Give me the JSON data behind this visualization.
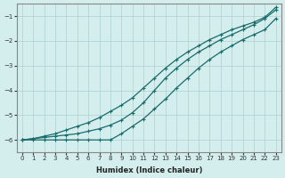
{
  "xlabel": "Humidex (Indice chaleur)",
  "xlim": [
    -0.5,
    23.5
  ],
  "ylim": [
    -6.5,
    -0.5
  ],
  "yticks": [
    -6,
    -5,
    -4,
    -3,
    -2,
    -1
  ],
  "xticks": [
    0,
    1,
    2,
    3,
    4,
    5,
    6,
    7,
    8,
    9,
    10,
    11,
    12,
    13,
    14,
    15,
    16,
    17,
    18,
    19,
    20,
    21,
    22,
    23
  ],
  "bg_color": "#d4eded",
  "grid_color": "#aed0d0",
  "line_color": "#1a6b6b",
  "series": {
    "upper": {
      "x": [
        0,
        1,
        2,
        3,
        4,
        5,
        6,
        7,
        8,
        9,
        10,
        11,
        12,
        13,
        14,
        15,
        16,
        17,
        18,
        19,
        20,
        21,
        22,
        23
      ],
      "y": [
        -6.0,
        -5.95,
        -5.85,
        -5.75,
        -5.6,
        -5.45,
        -5.3,
        -5.1,
        -4.85,
        -4.6,
        -4.3,
        -3.9,
        -3.5,
        -3.1,
        -2.75,
        -2.45,
        -2.2,
        -1.95,
        -1.75,
        -1.55,
        -1.4,
        -1.25,
        -1.05,
        -0.65
      ],
      "marker": true
    },
    "middle": {
      "x": [
        0,
        1,
        2,
        3,
        4,
        5,
        6,
        7,
        8,
        9,
        10,
        11,
        12,
        13,
        14,
        15,
        16,
        17,
        18,
        19,
        20,
        21,
        22,
        23
      ],
      "y": [
        -6.0,
        -5.95,
        -5.9,
        -5.85,
        -5.8,
        -5.75,
        -5.65,
        -5.55,
        -5.4,
        -5.2,
        -4.9,
        -4.5,
        -4.0,
        -3.5,
        -3.1,
        -2.75,
        -2.45,
        -2.2,
        -1.95,
        -1.75,
        -1.55,
        -1.35,
        -1.1,
        -0.75
      ],
      "marker": true
    },
    "lower": {
      "x": [
        0,
        1,
        2,
        3,
        4,
        5,
        6,
        7,
        8,
        9,
        10,
        11,
        12,
        13,
        14,
        15,
        16,
        17,
        18,
        19,
        20,
        21,
        22,
        23
      ],
      "y": [
        -6.0,
        -6.0,
        -6.0,
        -6.0,
        -6.0,
        -6.0,
        -6.0,
        -6.0,
        -6.0,
        -5.75,
        -5.45,
        -5.15,
        -4.75,
        -4.35,
        -3.9,
        -3.5,
        -3.1,
        -2.75,
        -2.45,
        -2.2,
        -1.95,
        -1.75,
        -1.55,
        -1.1
      ],
      "marker": true
    }
  }
}
